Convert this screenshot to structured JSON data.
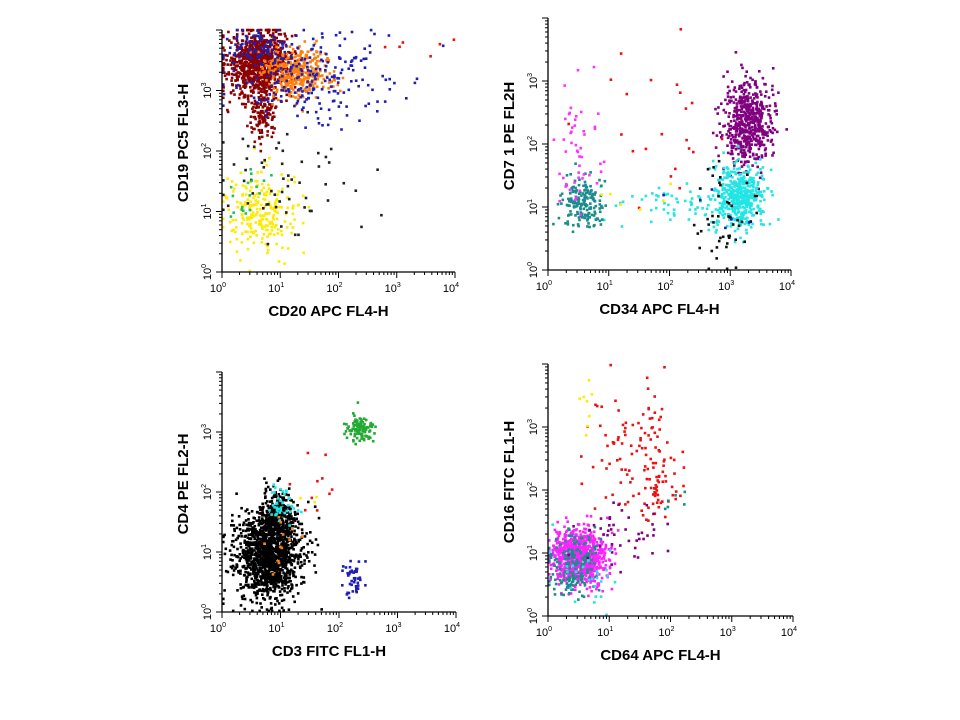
{
  "chart_data": [
    {
      "type": "scatter",
      "id": "p1",
      "xlabel": "CD20 APC FL4-H",
      "ylabel": "CD19 PC5 FL3-H",
      "xscale": "log",
      "yscale": "log",
      "xlim": [
        1,
        10000
      ],
      "ylim": [
        1,
        10000
      ],
      "xticks": [
        {
          "base": "10",
          "exp": "0"
        },
        {
          "base": "10",
          "exp": "1"
        },
        {
          "base": "10",
          "exp": "2"
        },
        {
          "base": "10",
          "exp": "3"
        },
        {
          "base": "10",
          "exp": "4"
        }
      ],
      "yticks": [
        {
          "base": "10",
          "exp": "0"
        },
        {
          "base": "10",
          "exp": "1"
        },
        {
          "base": "10",
          "exp": "2"
        },
        {
          "base": "10",
          "exp": "3"
        }
      ],
      "populations": [
        {
          "color": "#8b0000",
          "n": 900,
          "cx": 0.65,
          "cy": 3.45,
          "sx": 0.28,
          "sy": 0.28
        },
        {
          "color": "#8b0000",
          "n": 120,
          "cx": 0.7,
          "cy": 2.6,
          "sx": 0.12,
          "sy": 0.2
        },
        {
          "color": "#ff7f0e",
          "n": 380,
          "cx": 1.3,
          "cy": 3.3,
          "sx": 0.3,
          "sy": 0.2
        },
        {
          "color": "#1f1fb4",
          "n": 220,
          "cx": 1.6,
          "cy": 3.2,
          "sx": 0.7,
          "sy": 0.38
        },
        {
          "color": "#1f1fb4",
          "n": 70,
          "cx": 0.55,
          "cy": 3.7,
          "sx": 0.3,
          "sy": 0.15
        },
        {
          "color": "#ffeb00",
          "n": 230,
          "cx": 0.65,
          "cy": 1.0,
          "sx": 0.3,
          "sy": 0.32
        },
        {
          "color": "#222222",
          "n": 60,
          "cx": 1.0,
          "cy": 1.5,
          "sx": 0.6,
          "sy": 0.5
        },
        {
          "color": "#20c060",
          "n": 18,
          "cx": 0.45,
          "cy": 1.3,
          "sx": 0.2,
          "sy": 0.3
        },
        {
          "color": "#ee1111",
          "n": 6,
          "cx": 3.2,
          "cy": 3.7,
          "sx": 0.3,
          "sy": 0.1
        }
      ]
    },
    {
      "type": "scatter",
      "id": "p2",
      "xlabel": "CD34 APC FL4-H",
      "ylabel": "CD7 1 PE FL2H",
      "xscale": "log",
      "yscale": "log",
      "xlim": [
        1,
        10000
      ],
      "ylim": [
        1,
        10000
      ],
      "xticks": [
        {
          "base": "10",
          "exp": "0"
        },
        {
          "base": "10",
          "exp": "1"
        },
        {
          "base": "10",
          "exp": "2"
        },
        {
          "base": "10",
          "exp": "3"
        },
        {
          "base": "10",
          "exp": "4"
        }
      ],
      "yticks": [
        {
          "base": "10",
          "exp": "0"
        },
        {
          "base": "10",
          "exp": "1"
        },
        {
          "base": "10",
          "exp": "2"
        },
        {
          "base": "10",
          "exp": "3"
        }
      ],
      "populations": [
        {
          "color": "#800080",
          "n": 550,
          "cx": 3.3,
          "cy": 2.35,
          "sx": 0.2,
          "sy": 0.35
        },
        {
          "color": "#22e5e5",
          "n": 450,
          "cx": 3.15,
          "cy": 1.15,
          "sx": 0.2,
          "sy": 0.25
        },
        {
          "color": "#22e5e5",
          "n": 60,
          "cx": 2.1,
          "cy": 1.0,
          "sx": 0.5,
          "sy": 0.2
        },
        {
          "color": "#1a8c8c",
          "n": 170,
          "cx": 0.55,
          "cy": 1.05,
          "sx": 0.17,
          "sy": 0.22
        },
        {
          "color": "#ff33ff",
          "n": 50,
          "cx": 0.55,
          "cy": 2.0,
          "sx": 0.2,
          "sy": 0.55
        },
        {
          "color": "#ee1111",
          "n": 22,
          "cx": 1.8,
          "cy": 2.3,
          "sx": 0.6,
          "sy": 0.7
        },
        {
          "color": "#111111",
          "n": 50,
          "cx": 2.95,
          "cy": 0.75,
          "sx": 0.25,
          "sy": 0.4
        },
        {
          "color": "#1f1fb4",
          "n": 6,
          "cx": 2.5,
          "cy": 1.0,
          "sx": 0.5,
          "sy": 0.3
        },
        {
          "color": "#ffeb00",
          "n": 6,
          "cx": 1.4,
          "cy": 1.2,
          "sx": 0.4,
          "sy": 0.2
        }
      ]
    },
    {
      "type": "scatter",
      "id": "p3",
      "xlabel": "CD3 FITC FL1-H",
      "ylabel": "CD4 PE FL2-H",
      "xscale": "log",
      "yscale": "log",
      "xlim": [
        1,
        10000
      ],
      "ylim": [
        1,
        10000
      ],
      "xticks": [
        {
          "base": "10",
          "exp": "0"
        },
        {
          "base": "10",
          "exp": "1"
        },
        {
          "base": "10",
          "exp": "2"
        },
        {
          "base": "10",
          "exp": "3"
        },
        {
          "base": "10",
          "exp": "4"
        }
      ],
      "yticks": [
        {
          "base": "10",
          "exp": "0"
        },
        {
          "base": "10",
          "exp": "1"
        },
        {
          "base": "10",
          "exp": "2"
        },
        {
          "base": "10",
          "exp": "3"
        }
      ],
      "populations": [
        {
          "color": "#000000",
          "n": 1300,
          "cx": 0.8,
          "cy": 0.95,
          "sx": 0.28,
          "sy": 0.38
        },
        {
          "color": "#000000",
          "n": 250,
          "cx": 0.95,
          "cy": 1.55,
          "sx": 0.18,
          "sy": 0.22
        },
        {
          "color": "#22aa33",
          "n": 110,
          "cx": 2.35,
          "cy": 3.05,
          "sx": 0.12,
          "sy": 0.1
        },
        {
          "color": "#1f1fb4",
          "n": 45,
          "cx": 2.25,
          "cy": 0.55,
          "sx": 0.1,
          "sy": 0.2
        },
        {
          "color": "#22e5e5",
          "n": 40,
          "cx": 1.05,
          "cy": 1.75,
          "sx": 0.12,
          "sy": 0.18
        },
        {
          "color": "#ee1111",
          "n": 10,
          "cx": 1.7,
          "cy": 2.2,
          "sx": 0.25,
          "sy": 0.25
        },
        {
          "color": "#ff7f0e",
          "n": 12,
          "cx": 1.0,
          "cy": 1.2,
          "sx": 0.2,
          "sy": 0.3
        },
        {
          "color": "#ffeb00",
          "n": 3,
          "cx": 1.5,
          "cy": 1.9,
          "sx": 0.1,
          "sy": 0.1
        }
      ]
    },
    {
      "type": "scatter",
      "id": "p4",
      "xlabel": "CD64 APC FL4-H",
      "ylabel": "CD16 FITC FL1-H",
      "xscale": "log",
      "yscale": "log",
      "xlim": [
        1,
        10000
      ],
      "ylim": [
        1,
        10000
      ],
      "xticks": [
        {
          "base": "10",
          "exp": "0"
        },
        {
          "base": "10",
          "exp": "1"
        },
        {
          "base": "10",
          "exp": "2"
        },
        {
          "base": "10",
          "exp": "3"
        },
        {
          "base": "10",
          "exp": "4"
        }
      ],
      "yticks": [
        {
          "base": "10",
          "exp": "0"
        },
        {
          "base": "10",
          "exp": "1"
        },
        {
          "base": "10",
          "exp": "2"
        },
        {
          "base": "10",
          "exp": "3"
        }
      ],
      "populations": [
        {
          "color": "#ff22ff",
          "n": 800,
          "cx": 0.5,
          "cy": 0.95,
          "sx": 0.22,
          "sy": 0.22
        },
        {
          "color": "#1a8c8c",
          "n": 180,
          "cx": 0.45,
          "cy": 0.85,
          "sx": 0.2,
          "sy": 0.28
        },
        {
          "color": "#ee1111",
          "n": 110,
          "cx": 1.45,
          "cy": 2.6,
          "sx": 0.35,
          "sy": 0.55
        },
        {
          "color": "#ee1111",
          "n": 30,
          "cx": 1.8,
          "cy": 2.0,
          "sx": 0.1,
          "sy": 0.2
        },
        {
          "color": "#800080",
          "n": 45,
          "cx": 1.2,
          "cy": 1.35,
          "sx": 0.35,
          "sy": 0.25
        },
        {
          "color": "#22e5e5",
          "n": 25,
          "cx": 0.7,
          "cy": 0.55,
          "sx": 0.3,
          "sy": 0.3
        },
        {
          "color": "#ffeb00",
          "n": 8,
          "cx": 0.6,
          "cy": 3.35,
          "sx": 0.08,
          "sy": 0.25
        },
        {
          "color": "#1a8c8c",
          "n": 6,
          "cx": 1.9,
          "cy": 1.7,
          "sx": 0.2,
          "sy": 0.15
        }
      ]
    }
  ]
}
